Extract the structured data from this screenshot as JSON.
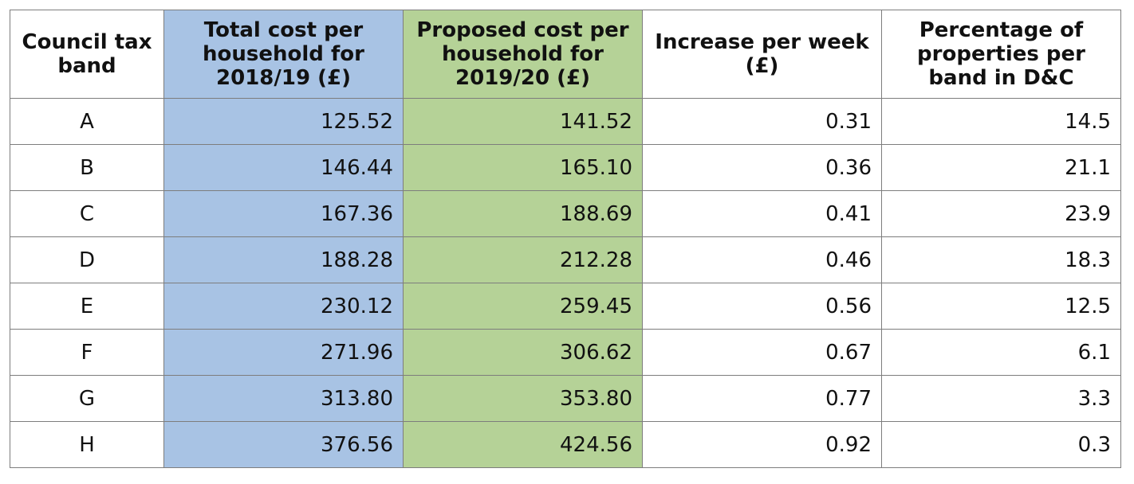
{
  "colors": {
    "col_2018": "#a8c3e4",
    "col_2019": "#b5d297"
  },
  "table": {
    "headers": [
      "Council tax band",
      "Total cost per household for 2018/19 (£)",
      "Proposed cost per household for 2019/20 (£)",
      "Increase per week (£)",
      "Percentage of properties per band in D&C"
    ],
    "rows": [
      [
        "A",
        "125.52",
        "141.52",
        "0.31",
        "14.5"
      ],
      [
        "B",
        "146.44",
        "165.10",
        "0.36",
        "21.1"
      ],
      [
        "C",
        "167.36",
        "188.69",
        "0.41",
        "23.9"
      ],
      [
        "D",
        "188.28",
        "212.28",
        "0.46",
        "18.3"
      ],
      [
        "E",
        "230.12",
        "259.45",
        "0.56",
        "12.5"
      ],
      [
        "F",
        "271.96",
        "306.62",
        "0.67",
        "6.1"
      ],
      [
        "G",
        "313.80",
        "353.80",
        "0.77",
        "3.3"
      ],
      [
        "H",
        "376.56",
        "424.56",
        "0.92",
        "0.3"
      ]
    ]
  }
}
